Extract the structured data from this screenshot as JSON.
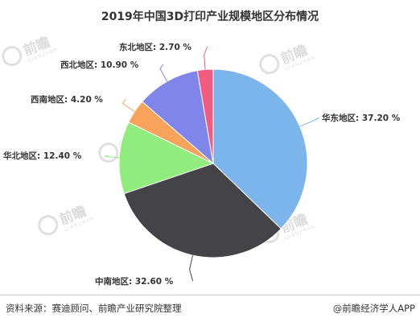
{
  "chart_data": {
    "type": "pie",
    "title": "2019年中国3D打印产业规模地区分布情况",
    "slices": [
      {
        "label": "华东地区",
        "value": 37.2,
        "display": "37.20 %",
        "color": "#7cb5ec"
      },
      {
        "label": "中南地区",
        "value": 32.6,
        "display": "32.60 %",
        "color": "#434348"
      },
      {
        "label": "华北地区",
        "value": 12.4,
        "display": "12.40 %",
        "color": "#90ed7d"
      },
      {
        "label": "西南地区",
        "value": 4.2,
        "display": "4.20 %",
        "color": "#f7a35c"
      },
      {
        "label": "西北地区",
        "value": 10.9,
        "display": "10.90 %",
        "color": "#8085e9"
      },
      {
        "label": "东北地区",
        "value": 2.7,
        "display": "2.70 %",
        "color": "#f15c80"
      }
    ],
    "start_angle": "12 o'clock",
    "direction": "clockwise",
    "legend": "none"
  },
  "watermark": {
    "text": "前瞻产业研究院",
    "short": "前瞻",
    "sub": "QIANZHAN INDUSTRY RESEARCH INSTITUTE"
  },
  "footer": {
    "source": "资料来源：赛迪顾问、前瞻产业研究院整理",
    "credit": "@前瞻经济学人APP"
  }
}
